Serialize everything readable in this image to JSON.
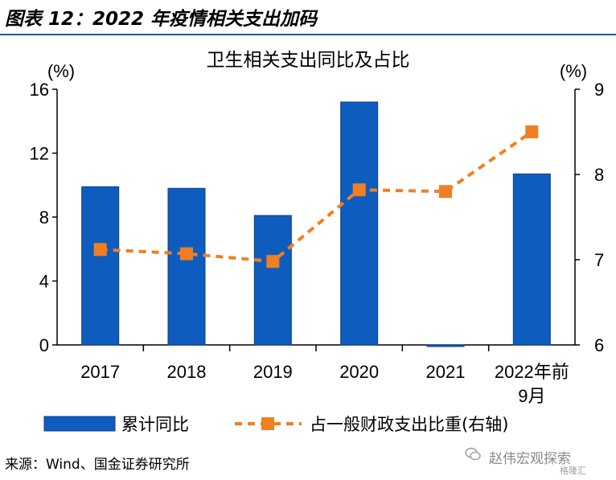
{
  "header": {
    "figure_title": "图表 12：2022 年疫情相关支出加码"
  },
  "chart_data": {
    "type": "bar+line",
    "title": "卫生相关支出同比及占比",
    "categories": [
      "2017",
      "2018",
      "2019",
      "2020",
      "2021",
      "2022年前9月"
    ],
    "series": [
      {
        "name": "累计同比",
        "type": "bar",
        "axis": "left",
        "values": [
          9.9,
          9.8,
          8.1,
          15.2,
          -0.1,
          10.7
        ],
        "color": "#0f5cbf"
      },
      {
        "name": "占一般财政支出比重(右轴)",
        "type": "line",
        "axis": "right",
        "values": [
          7.12,
          7.07,
          6.98,
          7.82,
          7.8,
          8.5
        ],
        "color": "#f07f22",
        "style": "dashed",
        "marker": "square"
      }
    ],
    "yleft": {
      "unit": "(%)",
      "lim": [
        0,
        16
      ],
      "ticks": [
        0,
        4,
        8,
        12,
        16
      ]
    },
    "yright": {
      "unit": "(%)",
      "lim": [
        6,
        9
      ],
      "ticks": [
        6,
        7,
        8,
        9
      ]
    },
    "legend_position": "bottom",
    "grid": false
  },
  "footer": {
    "source": "来源：Wind、国金证券研究所",
    "watermark": "赵伟宏观探索",
    "watermark_sub": "格隆汇"
  }
}
